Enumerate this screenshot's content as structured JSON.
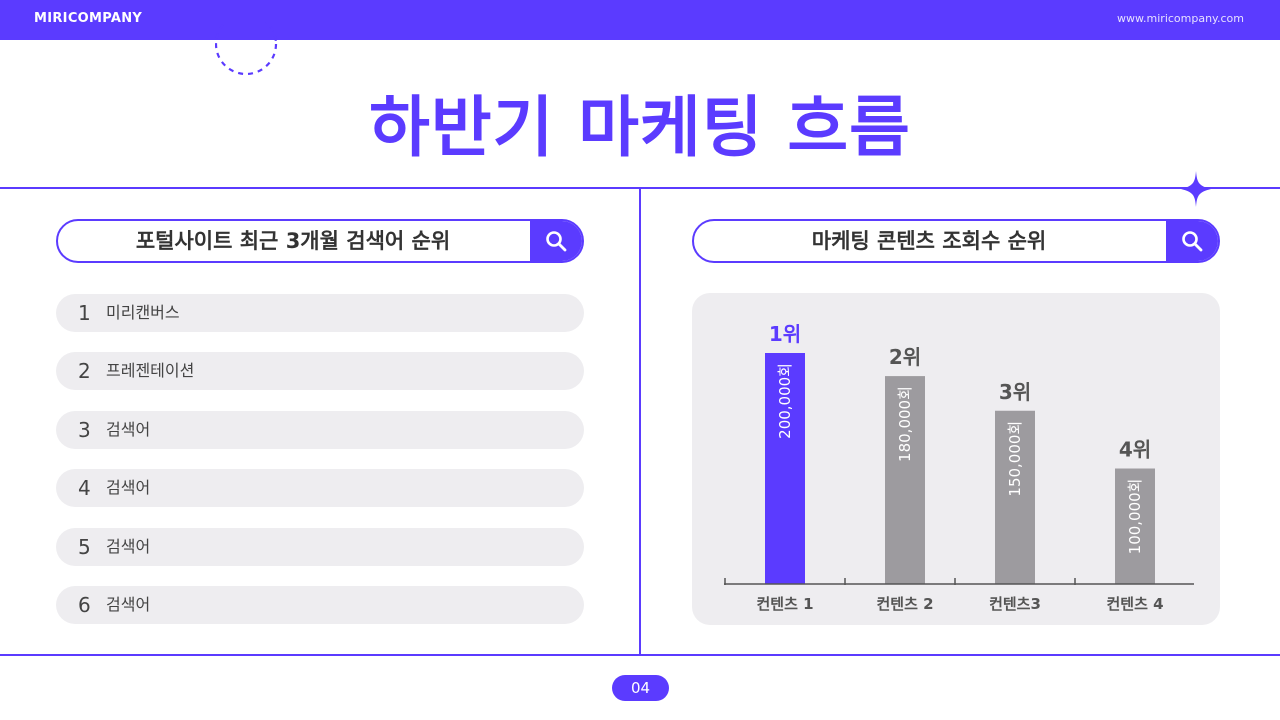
{
  "header": {
    "brand": "MIRICOMPANY",
    "website": "www.miricompany.com"
  },
  "title": "하반기 마케팅 흐름",
  "left_section": {
    "search_title": "포털사이트 최근 3개월 검색어 순위",
    "icon": "search-icon",
    "items": [
      {
        "rank": "1",
        "label": "미리캔버스"
      },
      {
        "rank": "2",
        "label": "프레젠테이션"
      },
      {
        "rank": "3",
        "label": "검색어"
      },
      {
        "rank": "4",
        "label": "검색어"
      },
      {
        "rank": "5",
        "label": "검색어"
      },
      {
        "rank": "6",
        "label": "검색어"
      }
    ]
  },
  "right_section": {
    "search_title": "마케팅 콘텐츠 조회수 순위",
    "icon": "search-icon"
  },
  "chart_data": {
    "type": "bar",
    "categories": [
      "컨텐츠 1",
      "컨텐츠 2",
      "컨텐츠3",
      "컨텐츠 4"
    ],
    "values": [
      200000,
      180000,
      150000,
      100000
    ],
    "rank_labels": [
      "1위",
      "2위",
      "3위",
      "4위"
    ],
    "value_labels": [
      "200,000회",
      "180,000회",
      "150,000회",
      "100,000회"
    ],
    "ylim": [
      0,
      200000
    ],
    "colors": {
      "highlight": "#5b3bff",
      "default": "#9d9b9f",
      "highlight_text": "#5b3bff",
      "default_text": "#555555"
    }
  },
  "page_number": "04",
  "colors": {
    "accent": "#5b3bff",
    "pill_bg": "#eeedf0"
  }
}
